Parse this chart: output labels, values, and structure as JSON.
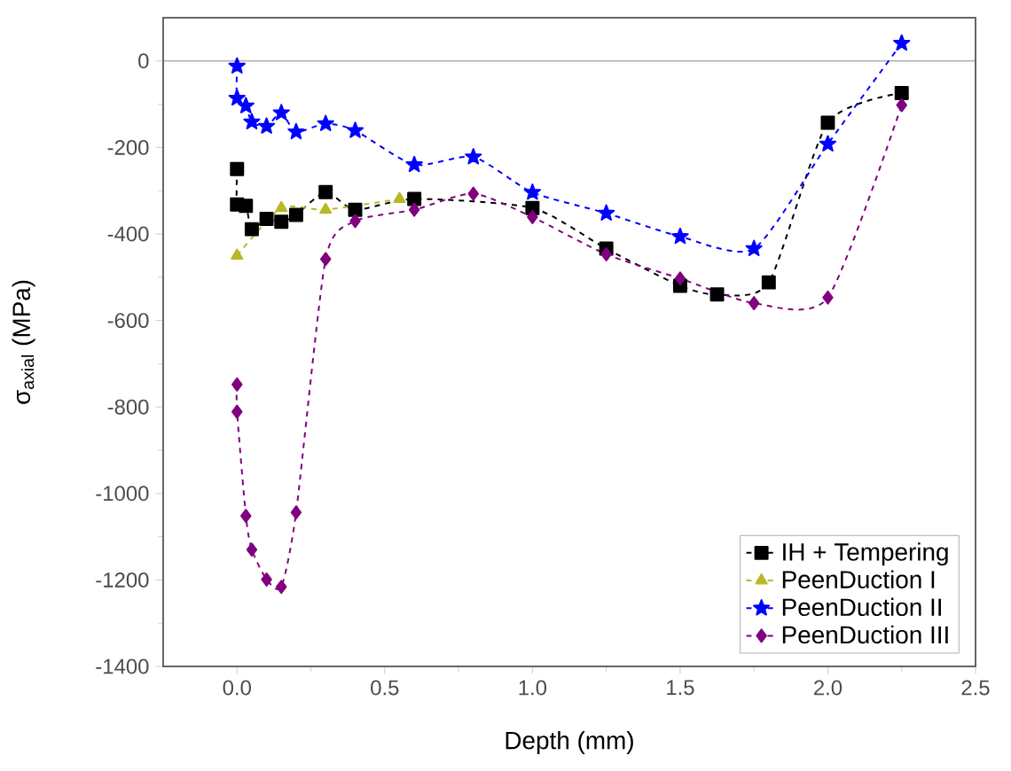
{
  "chart_data": {
    "type": "line",
    "xlabel": "Depth (mm)",
    "ylabel": "σ$_{axial}$ (MPa)",
    "xlim": [
      -0.25,
      2.5
    ],
    "ylim": [
      -1400,
      100
    ],
    "xticks": [
      {
        "value": 0,
        "label": "0.0"
      },
      {
        "value": 0.5,
        "label": "0.5"
      },
      {
        "value": 1,
        "label": "1.0"
      },
      {
        "value": 1.5,
        "label": "1.5"
      },
      {
        "value": 2,
        "label": "2.0"
      },
      {
        "value": 2.5,
        "label": "2.5"
      }
    ],
    "yticks": [
      -1400,
      -1200,
      -1000,
      -800,
      -600,
      -400,
      -200,
      0
    ],
    "grid": false,
    "legend": "bottom right",
    "line_style": "dashed",
    "ref_lines": [
      {
        "axis": "y",
        "value": 0,
        "color": "#b0b0b0",
        "line_style": "solid"
      }
    ],
    "series": [
      {
        "name": "IH + Tempering",
        "color": "#000000",
        "marker": "square",
        "x": [
          0,
          0,
          0.03,
          0.05,
          0.1,
          0.15,
          0.2,
          0.3,
          0.4,
          0.6,
          1.0,
          1.25,
          1.5,
          1.625,
          1.8,
          2.0,
          2.25
        ],
        "values": [
          -250,
          -332,
          -335,
          -389,
          -365,
          -372,
          -356,
          -303,
          -344,
          -319,
          -340,
          -434,
          -520,
          -540,
          -512,
          -143,
          -74
        ]
      },
      {
        "name": "PeenDuction I",
        "color": "#b8b828",
        "marker": "triangle",
        "x": [
          0,
          0.15,
          0.3,
          0.55
        ],
        "values": [
          -450,
          -340,
          -344,
          -319
        ]
      },
      {
        "name": "PeenDuction II",
        "color": "#0000ff",
        "marker": "star",
        "x": [
          0,
          0,
          0.03,
          0.05,
          0.1,
          0.15,
          0.2,
          0.3,
          0.4,
          0.6,
          0.8,
          1.0,
          1.25,
          1.5,
          1.75,
          2.0,
          2.25
        ],
        "values": [
          -12,
          -86,
          -104,
          -141,
          -151,
          -120,
          -164,
          -145,
          -161,
          -240,
          -222,
          -304,
          -352,
          -406,
          -434,
          -192,
          41
        ]
      },
      {
        "name": "PeenDuction III",
        "color": "#800080",
        "marker": "diamond",
        "x": [
          0,
          0,
          0.03,
          0.05,
          0.1,
          0.15,
          0.2,
          0.3,
          0.4,
          0.6,
          0.8,
          1.0,
          1.25,
          1.5,
          1.75,
          2.0,
          2.25
        ],
        "values": [
          -748,
          -811,
          -1052,
          -1130,
          -1199,
          -1216,
          -1044,
          -458,
          -370,
          -344,
          -307,
          -361,
          -447,
          -503,
          -560,
          -547,
          -102
        ]
      }
    ]
  }
}
